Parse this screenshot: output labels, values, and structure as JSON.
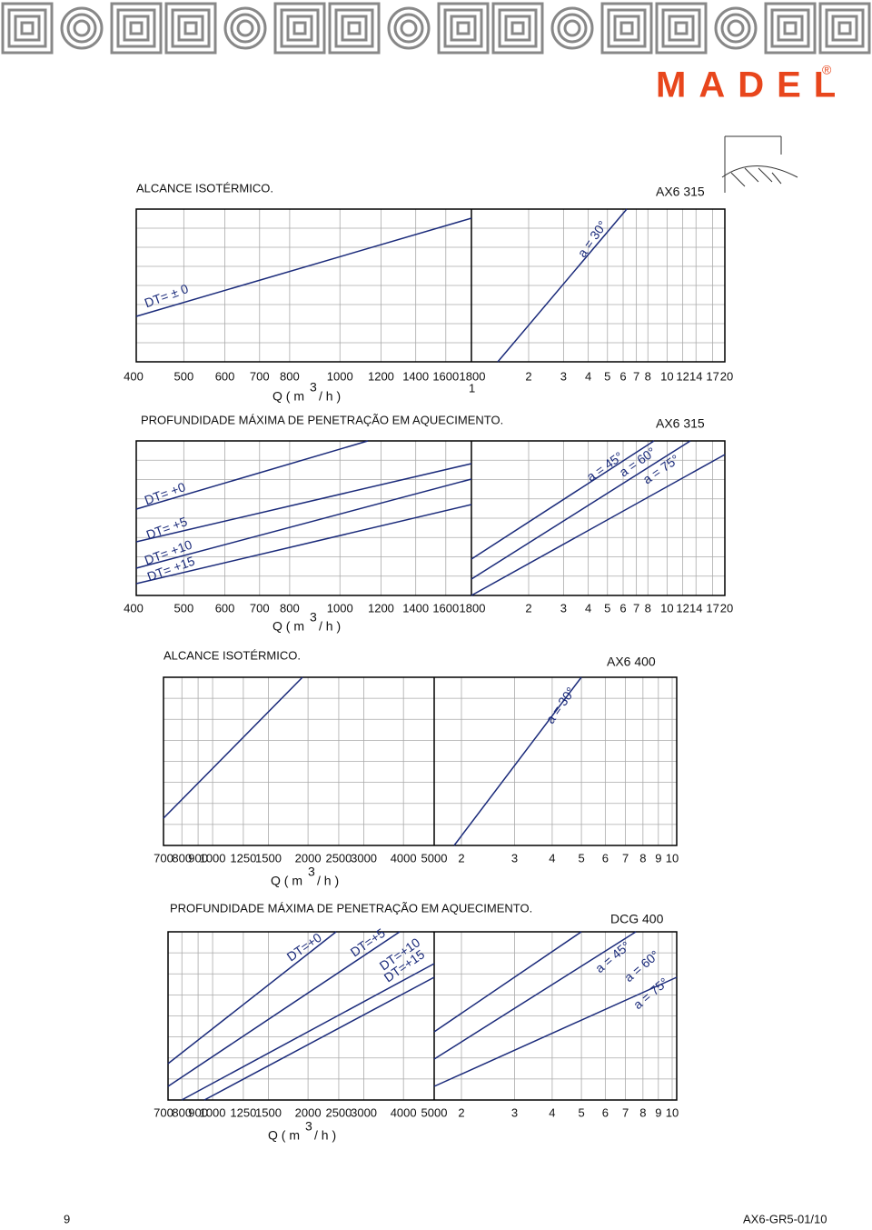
{
  "header": {
    "brand": "MADEL",
    "registered": "®"
  },
  "panels": [
    {
      "caption": "ALCANCE ISOTÉRMICO.",
      "model": "AX6 315",
      "left_ticks": [
        400,
        500,
        600,
        700,
        800,
        1000,
        1200,
        1400,
        1600,
        1800
      ],
      "note": "1",
      "right_ticks": [
        2,
        3,
        4,
        5,
        6,
        7,
        8,
        10,
        12,
        14,
        17,
        20
      ],
      "axis_label": "Q ( m",
      "axis_sup": "3",
      "axis_end": "/ h )",
      "line_labels": [
        "DT= ± 0",
        "a = 30°"
      ]
    },
    {
      "caption": "PROFUNDIDADE MÁXIMA DE PENETRAÇÃO EM AQUECIMENTO.",
      "model": "AX6 315",
      "left_ticks": [
        400,
        500,
        600,
        700,
        800,
        1000,
        1200,
        1400,
        1600,
        1800
      ],
      "right_ticks": [
        2,
        3,
        4,
        5,
        6,
        7,
        8,
        10,
        12,
        14,
        17,
        20
      ],
      "axis_label": "Q ( m",
      "axis_sup": "3",
      "axis_end": "/ h )",
      "line_labels": [
        "DT= +0",
        "DT= +5",
        "DT= +10",
        "DT= +15",
        "a = 45°",
        "a = 60°",
        "a = 75°"
      ]
    },
    {
      "caption": "ALCANCE ISOTÉRMICO.",
      "model": "AX6  400",
      "left_ticks": [
        700,
        800,
        900,
        1000,
        1250,
        1500,
        2000,
        2500,
        3000,
        4000,
        5000
      ],
      "right_ticks": [
        2,
        3,
        4,
        5,
        6,
        7,
        8,
        9,
        10
      ],
      "axis_label": "Q ( m",
      "axis_sup": "3",
      "axis_end": "/ h )",
      "line_labels": [
        "a = 30°"
      ]
    },
    {
      "caption": "PROFUNDIDADE MÁXIMA DE PENETRAÇÃO EM AQUECIMENTO.",
      "model": "DCG 400",
      "left_ticks": [
        700,
        800,
        900,
        1000,
        1250,
        1500,
        2000,
        2500,
        3000,
        4000,
        5000
      ],
      "right_ticks": [
        2,
        3,
        4,
        5,
        6,
        7,
        8,
        9,
        10
      ],
      "axis_label": "Q ( m",
      "axis_sup": "3",
      "axis_end": "/ h )",
      "line_labels": [
        "DT=+0",
        "DT=+5",
        "DT=+10",
        "DT=+15",
        "a = 45°",
        "a = 60°",
        "a = 75°"
      ]
    }
  ],
  "footer": {
    "page": "9",
    "code": "AX6-GR5-01/10"
  }
}
